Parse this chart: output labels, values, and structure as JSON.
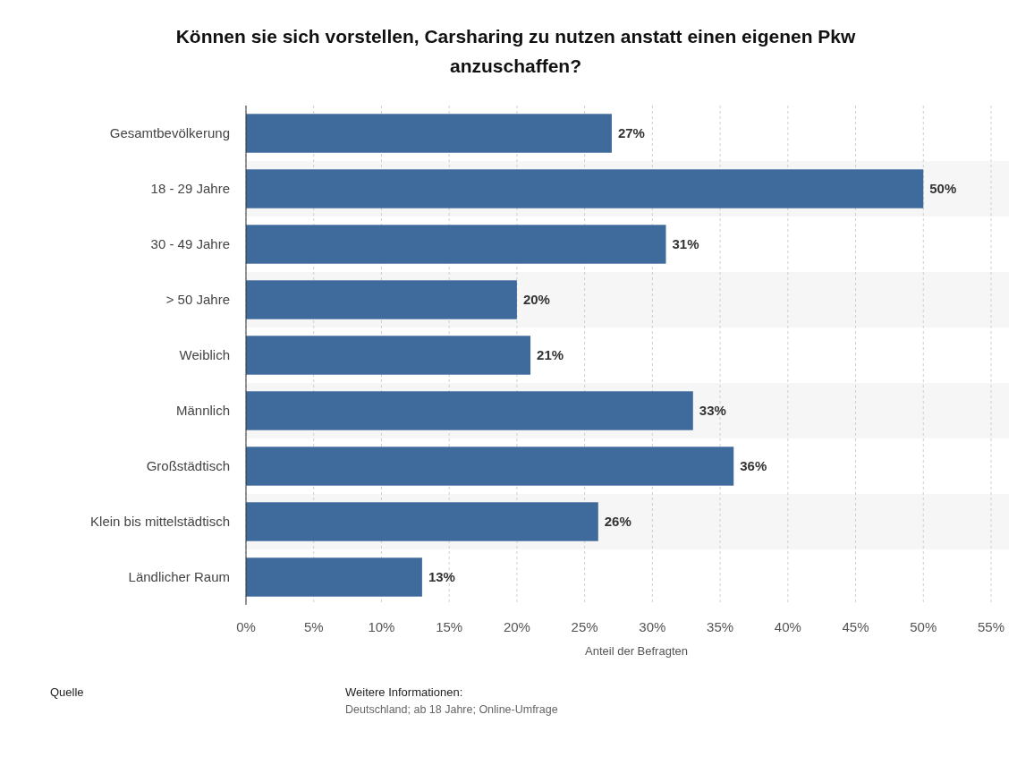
{
  "chart_data": {
    "type": "bar",
    "orientation": "horizontal",
    "title": "Können sie sich vorstellen, Carsharing zu nutzen anstatt einen eigenen Pkw anzuschaffen?",
    "categories": [
      "Gesamtbevölkerung",
      "18 - 29 Jahre",
      "30 - 49 Jahre",
      "> 50 Jahre",
      "Weiblich",
      "Männlich",
      "Großstädtisch",
      "Klein bis mittelstädtisch",
      "Ländlicher Raum"
    ],
    "values": [
      27,
      50,
      31,
      20,
      21,
      33,
      36,
      26,
      13
    ],
    "value_labels": [
      "27%",
      "50%",
      "31%",
      "20%",
      "21%",
      "33%",
      "36%",
      "26%",
      "13%"
    ],
    "color": "#3f6a9c",
    "xlim": [
      0,
      55
    ],
    "xticks": [
      {
        "value": 0,
        "label": "0%"
      },
      {
        "value": 5,
        "label": "5%"
      },
      {
        "value": 10,
        "label": "10%"
      },
      {
        "value": 15,
        "label": "15%"
      },
      {
        "value": 20,
        "label": "20%"
      },
      {
        "value": 25,
        "label": "25%"
      },
      {
        "value": 30,
        "label": "30%"
      },
      {
        "value": 35,
        "label": "35%"
      },
      {
        "value": 40,
        "label": "40%"
      },
      {
        "value": 45,
        "label": "45%"
      },
      {
        "value": 50,
        "label": "50%"
      },
      {
        "value": 55,
        "label": "55%"
      }
    ],
    "xlabel": "Anteil der Befragten",
    "grid": "x",
    "annotations": [
      "Quelle",
      "Weitere Informationen:",
      "Deutschland; ab 18 Jahre; Online-Umfrage"
    ]
  }
}
